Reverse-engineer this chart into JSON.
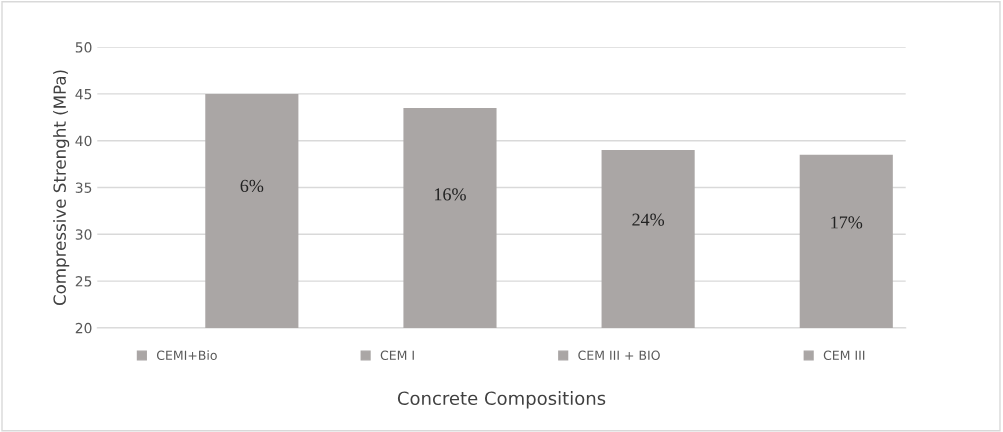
{
  "chart_data": {
    "type": "bar",
    "xlabel": "Concrete Compositions",
    "ylabel": "Compressive Strenght (MPa)",
    "categories": [
      null,
      null,
      null,
      null
    ],
    "series": [
      {
        "name": "CEMI+Bio",
        "color": "#aaa6a5",
        "values": [
          45,
          null,
          null,
          null
        ]
      },
      {
        "name": "CEM I",
        "color": "#aaa6a5",
        "values": [
          null,
          43.5,
          null,
          null
        ]
      },
      {
        "name": "CEM III + BIO",
        "color": "#aaa6a5",
        "values": [
          null,
          null,
          39,
          null
        ]
      },
      {
        "name": "CEM III",
        "color": "#aaa6a5",
        "values": [
          null,
          null,
          null,
          38.5
        ]
      }
    ],
    "annotations": [
      "6%",
      "16%",
      "24%",
      "17%"
    ],
    "ylim": [
      20,
      50
    ],
    "yticks": [
      20,
      25,
      30,
      35,
      40,
      45,
      50
    ],
    "grid": "y",
    "legend": "bottom"
  }
}
